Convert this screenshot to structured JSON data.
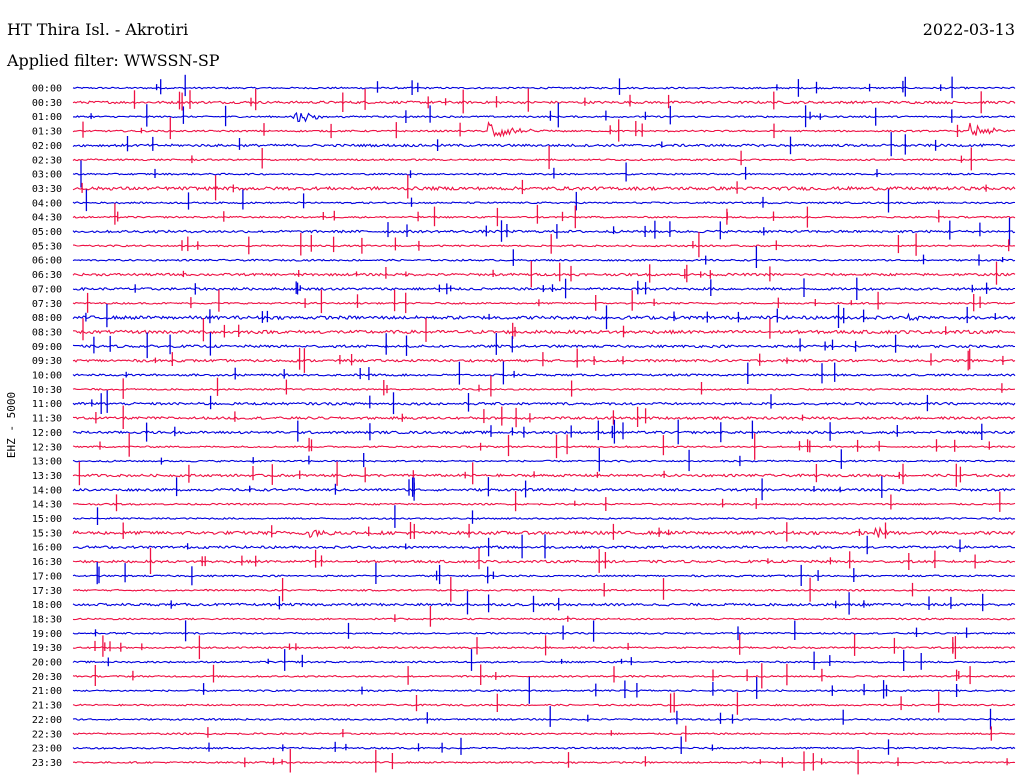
{
  "header": {
    "station": "HT Thira Isl. - Akrotiri",
    "date": "2022-03-13",
    "filter": "Applied filter: WWSSN-SP"
  },
  "chart_data": {
    "type": "line",
    "title": "HT Thira Isl. - Akrotiri",
    "ylabel": "EHZ - 5000",
    "colors": [
      "#0000dd",
      "#ee1144"
    ],
    "rows": [
      "00:00",
      "00:30",
      "01:00",
      "01:30",
      "02:00",
      "02:30",
      "03:00",
      "03:30",
      "04:00",
      "04:30",
      "05:00",
      "05:30",
      "06:00",
      "06:30",
      "07:00",
      "07:30",
      "08:00",
      "08:30",
      "09:00",
      "09:30",
      "10:00",
      "10:30",
      "11:00",
      "11:30",
      "12:00",
      "12:30",
      "13:00",
      "13:30",
      "14:00",
      "14:30",
      "15:00",
      "15:30",
      "16:00",
      "16:30",
      "17:00",
      "17:30",
      "18:00",
      "18:30",
      "19:00",
      "19:30",
      "20:00",
      "20:30",
      "21:00",
      "21:30",
      "22:00",
      "22:30",
      "23:00",
      "23:30"
    ],
    "noise": [
      1,
      1.5,
      1,
      1,
      1.5,
      1,
      1,
      2,
      1,
      1,
      1.5,
      1,
      1,
      1.5,
      1.5,
      1,
      2,
      2,
      1.5,
      1.5,
      1.2,
      1,
      1.5,
      1.5,
      1.5,
      1,
      1,
      1.5,
      1.5,
      1,
      1,
      2,
      1.5,
      1.5,
      1,
      1,
      1.5,
      1,
      1,
      1,
      1,
      1,
      1,
      1,
      1,
      1,
      1,
      1
    ],
    "events": [
      {
        "row": 3,
        "minute": 13.2,
        "amp": 14
      },
      {
        "row": 3,
        "minute": 28.5,
        "amp": 10
      },
      {
        "row": 2,
        "minute": 7.0,
        "amp": 8
      },
      {
        "row": 31,
        "minute": 7.5,
        "amp": 6
      },
      {
        "row": 31,
        "minute": 25.5,
        "amp": 5
      },
      {
        "row": 16,
        "minute": 26.5,
        "amp": 3
      }
    ]
  }
}
